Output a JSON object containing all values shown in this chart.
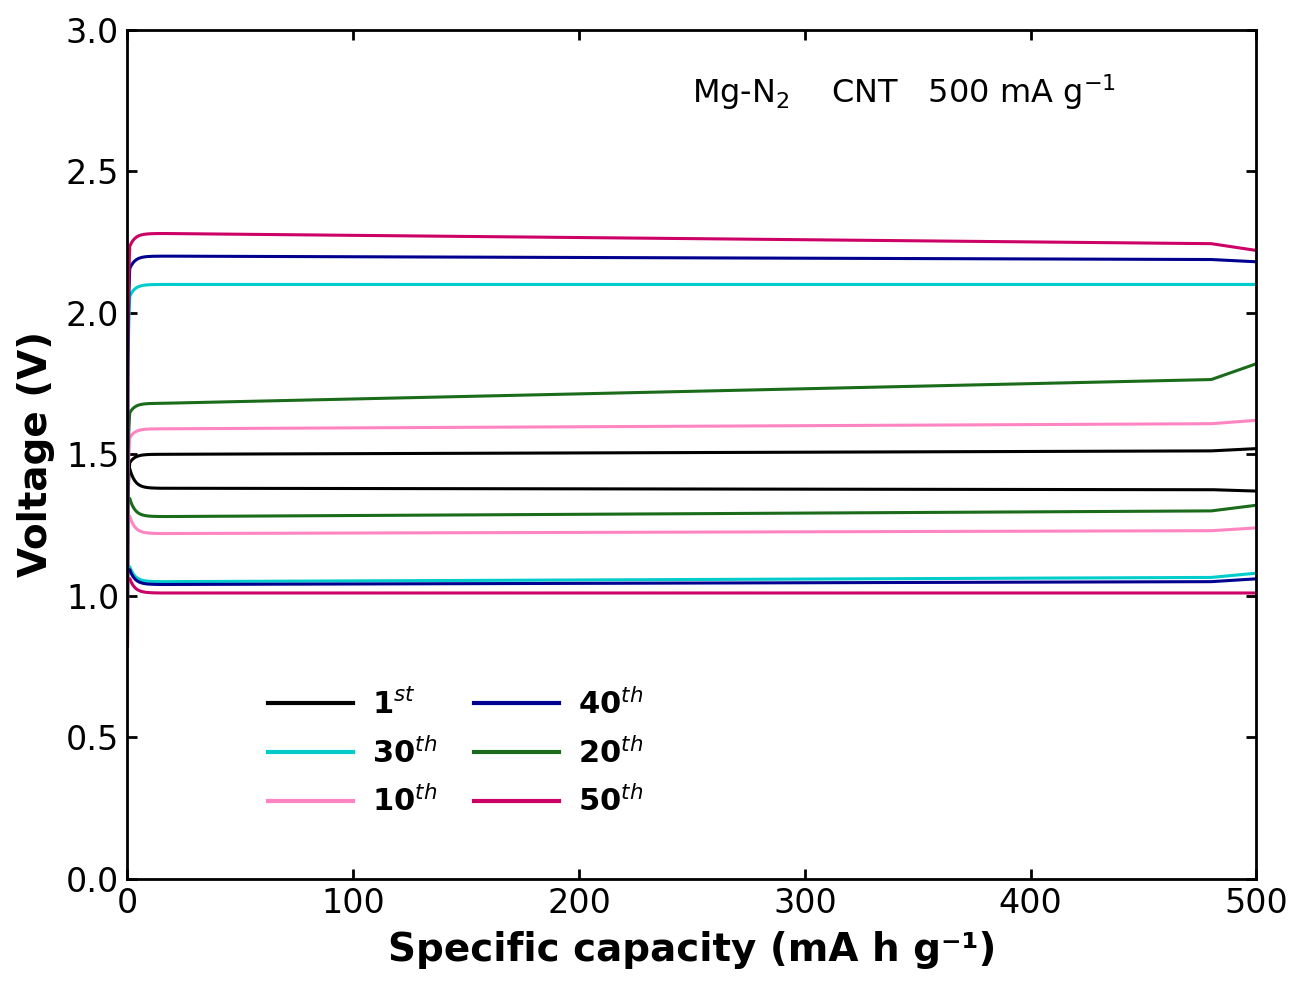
{
  "xlabel": "Specific capacity (mA h g⁻¹)",
  "ylabel": "Voltage (V)",
  "xlim": [
    0,
    500
  ],
  "ylim": [
    0.0,
    3.0
  ],
  "xticks": [
    0,
    100,
    200,
    300,
    400,
    500
  ],
  "yticks": [
    0.0,
    0.5,
    1.0,
    1.5,
    2.0,
    2.5,
    3.0
  ],
  "series": [
    {
      "label": "1st",
      "color": "#000000",
      "charge_start": 0.82,
      "charge_peak": 1.56,
      "charge_plateau": 1.5,
      "charge_end": 1.52,
      "discharge_start": 1.42,
      "discharge_plateau": 1.38,
      "discharge_end": 1.37,
      "lw": 2.2
    },
    {
      "label": "10th",
      "color": "#FF85C2",
      "charge_start": 0.82,
      "charge_peak": 1.65,
      "charge_plateau": 1.59,
      "charge_end": 1.62,
      "discharge_start": 1.28,
      "discharge_plateau": 1.22,
      "discharge_end": 1.24,
      "lw": 2.2
    },
    {
      "label": "20th",
      "color": "#1A6B1A",
      "charge_start": 0.82,
      "charge_peak": 1.75,
      "charge_plateau": 1.68,
      "charge_end": 1.82,
      "discharge_start": 1.35,
      "discharge_plateau": 1.28,
      "discharge_end": 1.32,
      "lw": 2.2
    },
    {
      "label": "30th",
      "color": "#00CCCC",
      "charge_start": 0.82,
      "charge_peak": 2.12,
      "charge_plateau": 2.1,
      "charge_end": 2.1,
      "discharge_start": 1.1,
      "discharge_plateau": 1.05,
      "discharge_end": 1.08,
      "lw": 2.2
    },
    {
      "label": "40th",
      "color": "#000090",
      "charge_start": 0.82,
      "charge_peak": 2.23,
      "charge_plateau": 2.2,
      "charge_end": 2.18,
      "discharge_start": 1.08,
      "discharge_plateau": 1.04,
      "discharge_end": 1.06,
      "lw": 2.2
    },
    {
      "label": "50th",
      "color": "#CC0066",
      "charge_start": 0.82,
      "charge_peak": 2.3,
      "charge_plateau": 2.28,
      "charge_end": 2.22,
      "discharge_start": 1.05,
      "discharge_plateau": 1.01,
      "discharge_end": 1.01,
      "lw": 2.2
    }
  ],
  "figure_width": 13.05,
  "figure_height": 9.86,
  "dpi": 100
}
